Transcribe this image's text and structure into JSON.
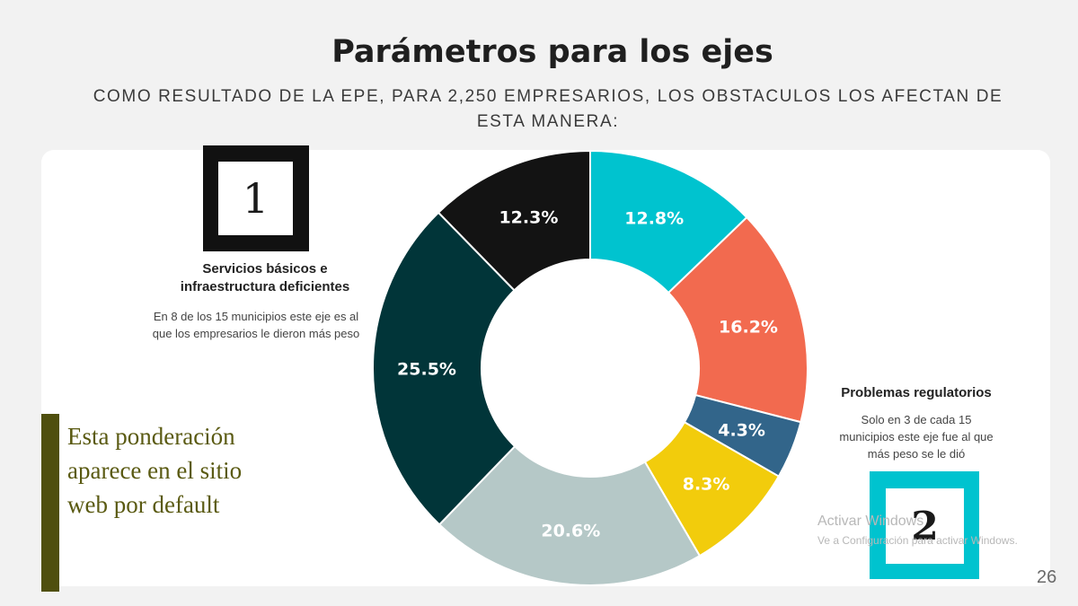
{
  "header": {
    "title": "Parámetros para los ejes",
    "subtitle": "COMO RESULTADO DE LA EPE, PARA 2,250 EMPRESARIOS, LOS OBSTACULOS LOS AFECTAN DE ESTA MANERA:"
  },
  "axis1": {
    "number": "1",
    "title": "Servicios básicos e infraestructura deficientes",
    "description": "En 8 de los 15 municipios este eje es al que los empresarios le dieron más  peso"
  },
  "axis2": {
    "number": "2",
    "title": "Problemas regulatorios",
    "description": "Solo en 3 de cada 15 municipios este eje fue al que más peso se le dió"
  },
  "note": "Esta ponderación aparece en el sitio web por default",
  "watermark": {
    "title": "Activar Windows",
    "subtitle": "Ve a Configuración para activar Windows."
  },
  "page_number": "26",
  "colors": {
    "box1": "#111111",
    "box2": "#00c3cf",
    "note_bar": "#4f4f0e"
  },
  "chart_data": {
    "type": "pie",
    "subtype": "donut",
    "start": "top",
    "direction": "clockwise",
    "slices": [
      {
        "label": "12.8%",
        "value": 12.8,
        "color": "#00c3cf"
      },
      {
        "label": "16.2%",
        "value": 16.2,
        "color": "#f26a4f"
      },
      {
        "label": "4.3%",
        "value": 4.3,
        "color": "#32658a"
      },
      {
        "label": "8.3%",
        "value": 8.3,
        "color": "#f2cc0c"
      },
      {
        "label": "20.6%",
        "value": 20.6,
        "color": "#b5c8c7"
      },
      {
        "label": "25.5%",
        "value": 25.5,
        "color": "#013539"
      },
      {
        "label": "12.3%",
        "value": 12.3,
        "color": "#131313"
      }
    ]
  }
}
